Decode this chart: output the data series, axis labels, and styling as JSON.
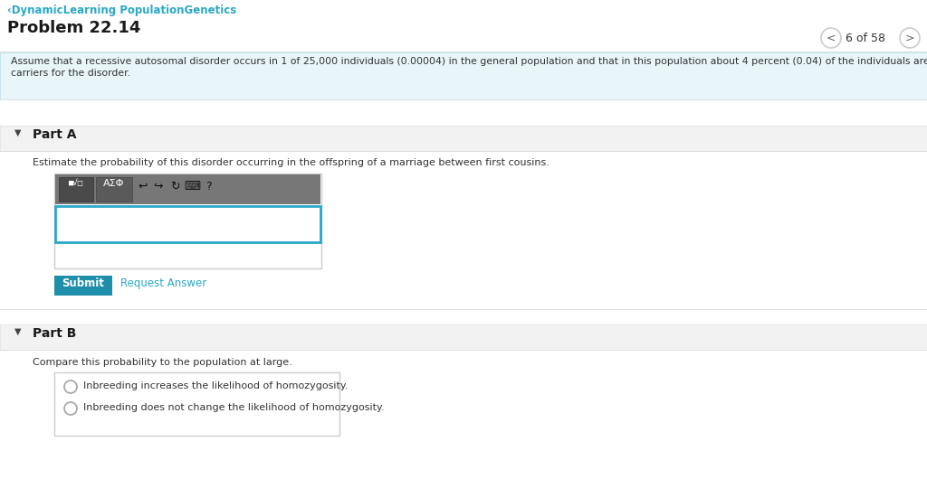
{
  "bg_color": "#ffffff",
  "header_link_color": "#2aa8c8",
  "header_link_text": "‹DynamicLearning PopulationGenetics",
  "problem_title": "Problem 22.14",
  "nav_text": "6 of 58",
  "info_box_bg": "#e8f6f9",
  "info_box_border": "#c5e5ee",
  "info_text_line1": "Assume that a recessive autosomal disorder occurs in 1 of 25,000 individuals (0.00004) in the general population and that in this population about 4 percent (0.04) of the individuals are",
  "info_text_line2": "carriers for the disorder.",
  "section_bg": "#f2f2f2",
  "section_border": "#dddddd",
  "part_a_title": "Part A",
  "part_a_question": "Estimate the probability of this disorder occurring in the offspring of a marriage between first cousins.",
  "input_border_color": "#2aa8c8",
  "submit_bg": "#1e8faa",
  "submit_text": "Submit",
  "request_answer_text": "Request Answer",
  "request_answer_color": "#2aa8c8",
  "part_b_title": "Part B",
  "part_b_question": "Compare this probability to the population at large.",
  "radio_option1": "Inbreeding increases the likelihood of homozygosity.",
  "radio_option2": "Inbreeding does not change the likelihood of homozygosity.",
  "text_color": "#333333",
  "toolbar_dark_bg": "#666666",
  "toolbar_btn_bg": "#555555",
  "toolbar_btn2_bg": "#5a5a5a",
  "line_color": "#dddddd",
  "nav_circle_color": "#cccccc",
  "radio_border": "#aaaaaa",
  "option_box_border": "#cccccc"
}
